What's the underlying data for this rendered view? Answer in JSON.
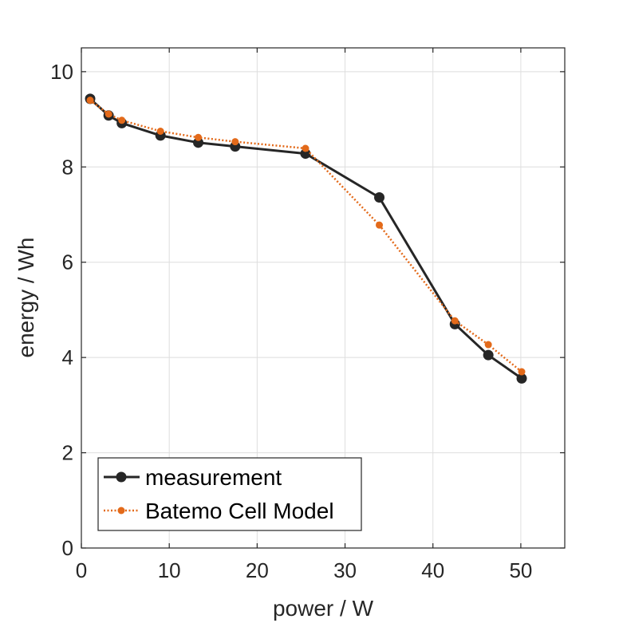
{
  "chart_data": {
    "type": "line",
    "title": "",
    "xlabel": "power / W",
    "ylabel": "energy / Wh",
    "xlim": [
      0,
      55
    ],
    "ylim": [
      0,
      10.5
    ],
    "xticks": [
      0,
      10,
      20,
      30,
      40,
      50
    ],
    "yticks": [
      0,
      2,
      4,
      6,
      8,
      10
    ],
    "xtick_labels": [
      "0",
      "10",
      "20",
      "30",
      "40",
      "50"
    ],
    "ytick_labels": [
      "0",
      "2",
      "4",
      "6",
      "8",
      "10"
    ],
    "grid": true,
    "legend_position": "bottom-left",
    "series": [
      {
        "name": "measurement",
        "color": "#262626",
        "style": "solid",
        "x": [
          1.0,
          3.1,
          4.6,
          9.0,
          13.3,
          17.5,
          25.5,
          33.9,
          42.5,
          46.3,
          50.1
        ],
        "y": [
          9.43,
          9.08,
          8.92,
          8.66,
          8.51,
          8.43,
          8.28,
          7.36,
          4.7,
          4.05,
          3.56
        ]
      },
      {
        "name": "Batemo Cell Model",
        "color": "#e36a1a",
        "style": "dotted",
        "x": [
          1.0,
          3.1,
          4.6,
          9.0,
          13.3,
          17.5,
          25.5,
          33.9,
          42.5,
          46.3,
          50.1
        ],
        "y": [
          9.4,
          9.11,
          8.98,
          8.75,
          8.62,
          8.53,
          8.39,
          6.78,
          4.77,
          4.27,
          3.7
        ]
      }
    ]
  }
}
